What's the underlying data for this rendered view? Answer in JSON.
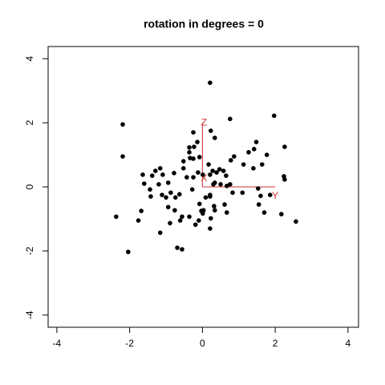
{
  "chart_data": {
    "type": "scatter",
    "title": "rotation in degrees = 0",
    "xlim": [
      -4.24,
      4.29
    ],
    "ylim": [
      -4.38,
      4.38
    ],
    "xticks": [
      -4,
      -2,
      0,
      2,
      4
    ],
    "yticks": [
      -4,
      -2,
      0,
      2,
      4
    ],
    "color": "#000000",
    "x": [
      0.21,
      -2.19,
      -2.19,
      1.97,
      0.76,
      -2.37,
      -2.04,
      2.57,
      2.17,
      2.26,
      2.24,
      2.26,
      1.77,
      1.48,
      1.42,
      1.27,
      1.13,
      0.87,
      0.78,
      1.64,
      1.4,
      1.53,
      1.6,
      1.55,
      1.7,
      1.86,
      1.1,
      0.83,
      0.61,
      0.67,
      0.76,
      0.67,
      0.5,
      0.34,
      0.3,
      0.39,
      0.28,
      0.47,
      0.21,
      0.21,
      0.09,
      0.21,
      0.32,
      0.34,
      0.23,
      0.21,
      -0.1,
      0.03,
      0.01,
      -0.03,
      -0.19,
      -0.36,
      -0.61,
      -0.56,
      -0.56,
      -0.69,
      -1.16,
      -0.89,
      -0.76,
      -0.94,
      -1.0,
      -1.11,
      -0.87,
      -0.63,
      -0.94,
      -1.09,
      -1.16,
      -1.29,
      -1.38,
      -1.64,
      -1.6,
      -1.44,
      -1.2,
      -0.78,
      -0.52,
      -0.52,
      -0.34,
      -0.36,
      -0.23,
      -0.36,
      -0.25,
      -0.14,
      -0.25,
      -0.08,
      -0.43,
      -0.25,
      -0.12,
      0.01,
      0.23,
      0.34,
      0.17,
      -1.68,
      -1.76,
      -1.42,
      -0.74,
      -0.28,
      -0.08,
      0.58,
      0.65
    ],
    "y": [
      3.25,
      1.95,
      0.95,
      2.22,
      2.12,
      -0.93,
      -2.03,
      -1.08,
      -0.85,
      1.25,
      0.33,
      0.23,
      1.0,
      1.4,
      1.18,
      1.08,
      0.7,
      0.95,
      0.83,
      0.7,
      0.58,
      -0.05,
      -0.28,
      -0.55,
      -0.8,
      -0.25,
      -0.18,
      -0.18,
      -0.55,
      -0.8,
      0.08,
      0.03,
      0.08,
      0.13,
      0.08,
      0.45,
      0.5,
      0.55,
      0.38,
      -0.25,
      -0.33,
      -0.3,
      -0.6,
      -0.73,
      -0.98,
      -1.3,
      -1.05,
      -0.73,
      -0.83,
      -0.75,
      -1.18,
      -0.93,
      -1.05,
      -0.93,
      -1.95,
      -1.9,
      -1.43,
      -1.13,
      -0.73,
      -0.63,
      -0.33,
      -0.25,
      -0.18,
      -0.23,
      0.13,
      0.38,
      0.58,
      0.5,
      0.35,
      0.38,
      0.1,
      -0.08,
      0.08,
      0.43,
      0.58,
      0.8,
      0.9,
      1.08,
      1.25,
      1.23,
      1.7,
      1.4,
      0.88,
      0.93,
      0.3,
      0.3,
      0.45,
      0.38,
      1.75,
      1.53,
      0.7,
      -0.75,
      -1.05,
      -0.3,
      -0.33,
      -0.08,
      -0.53,
      0.5,
      0.35
    ],
    "axis_color": "#cc3333",
    "axes3d": [
      {
        "label": "X",
        "end": [
          0,
          0
        ]
      },
      {
        "label": "Y",
        "end": [
          2,
          0
        ]
      },
      {
        "label": "Z",
        "end": [
          0,
          2
        ]
      }
    ]
  }
}
